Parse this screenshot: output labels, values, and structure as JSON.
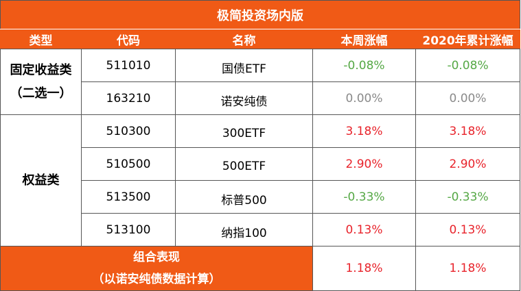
{
  "title": "极简投资场内版",
  "headers": [
    "类型",
    "代码",
    "名称",
    "本周涨幅",
    "2020年累计涨幅"
  ],
  "groups": {
    "fixed_income": [
      "固定收益类",
      "（二选一）"
    ],
    "equity": "权益类"
  },
  "rows": [
    {
      "code": "511010",
      "name": "国债ETF",
      "week": "-0.08%",
      "ytd": "-0.08%"
    },
    {
      "code": "163210",
      "name": "诺安纯债",
      "week": "0.00%",
      "ytd": "0.00%"
    },
    {
      "code": "510300",
      "name": "300ETF",
      "week": "3.18%",
      "ytd": "3.18%"
    },
    {
      "code": "510500",
      "name": "500ETF",
      "week": "2.90%",
      "ytd": "2.90%"
    },
    {
      "code": "513500",
      "name": "标普500",
      "week": "-0.33%",
      "ytd": "-0.33%"
    },
    {
      "code": "513100",
      "name": "纳指100",
      "week": "0.13%",
      "ytd": "0.13%"
    }
  ],
  "footer": {
    "label_line1": "组合表现",
    "label_line2": "（以诺安纯债数据计算）",
    "week": "1.18%",
    "ytd": "1.18%"
  },
  "colors": {
    "header_bg": "#f05a16",
    "positive": "#e8232b",
    "negative": "#55a845",
    "zero": "#8a8a8a"
  }
}
